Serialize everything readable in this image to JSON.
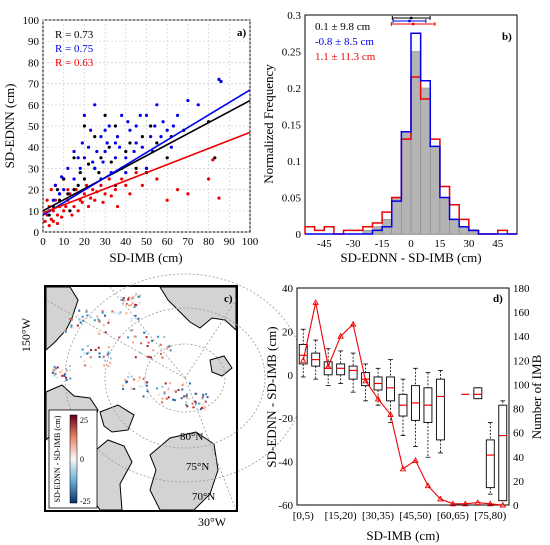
{
  "chart_data": [
    {
      "panel": "a)",
      "type": "scatter",
      "xlabel": "SD-IMB (cm)",
      "ylabel": "SD-EDNN (cm)",
      "xlim": [
        0,
        100
      ],
      "ylim": [
        0,
        100
      ],
      "xticks": [
        "0",
        "10",
        "20",
        "30",
        "40",
        "50",
        "60",
        "70",
        "80",
        "90",
        "100"
      ],
      "yticks": [
        "0",
        "10",
        "20",
        "30",
        "40",
        "50",
        "60",
        "70",
        "80",
        "90",
        "100"
      ],
      "grid": true,
      "series": [
        {
          "label": "R = 0.73",
          "color": "#000000",
          "fit": [
            10,
            0.52
          ],
          "points": [
            [
              5,
              12
            ],
            [
              8,
              15
            ],
            [
              12,
              18
            ],
            [
              15,
              20
            ],
            [
              20,
              25
            ],
            [
              25,
              30
            ],
            [
              28,
              35
            ],
            [
              32,
              40
            ],
            [
              35,
              22
            ],
            [
              40,
              38
            ],
            [
              45,
              30
            ],
            [
              48,
              45
            ],
            [
              50,
              28
            ],
            [
              55,
              42
            ],
            [
              60,
              35
            ],
            [
              20,
              50
            ],
            [
              25,
              45
            ],
            [
              30,
              55
            ],
            [
              15,
              35
            ],
            [
              10,
              25
            ],
            [
              18,
              28
            ],
            [
              22,
              32
            ],
            [
              35,
              50
            ],
            [
              42,
              42
            ],
            [
              52,
              50
            ],
            [
              62,
              45
            ],
            [
              68,
              48
            ],
            [
              80,
              52
            ],
            [
              83,
              35
            ],
            [
              3,
              8
            ],
            [
              7,
              20
            ],
            [
              13,
              10
            ],
            [
              17,
              22
            ],
            [
              27,
              28
            ],
            [
              33,
              33
            ],
            [
              38,
              30
            ]
          ]
        },
        {
          "label": "R = 0.75",
          "color": "#0000ee",
          "fit": [
            8,
            0.59
          ],
          "points": [
            [
              5,
              15
            ],
            [
              8,
              18
            ],
            [
              10,
              20
            ],
            [
              15,
              25
            ],
            [
              18,
              30
            ],
            [
              20,
              35
            ],
            [
              22,
              40
            ],
            [
              25,
              30
            ],
            [
              28,
              45
            ],
            [
              30,
              38
            ],
            [
              32,
              50
            ],
            [
              35,
              42
            ],
            [
              38,
              55
            ],
            [
              40,
              35
            ],
            [
              42,
              48
            ],
            [
              45,
              50
            ],
            [
              48,
              40
            ],
            [
              50,
              55
            ],
            [
              52,
              45
            ],
            [
              55,
              60
            ],
            [
              58,
              52
            ],
            [
              60,
              48
            ],
            [
              62,
              40
            ],
            [
              65,
              55
            ],
            [
              70,
              62
            ],
            [
              75,
              60
            ],
            [
              85,
              72
            ],
            [
              86,
              71
            ],
            [
              20,
              55
            ],
            [
              25,
              60
            ],
            [
              30,
              48
            ],
            [
              35,
              35
            ],
            [
              40,
              28
            ],
            [
              15,
              38
            ],
            [
              12,
              30
            ],
            [
              28,
              25
            ],
            [
              33,
              28
            ],
            [
              45,
              42
            ],
            [
              50,
              30
            ],
            [
              24,
              33
            ],
            [
              26,
              38
            ],
            [
              36,
              45
            ],
            [
              44,
              38
            ],
            [
              54,
              50
            ],
            [
              3,
              10
            ],
            [
              6,
              22
            ],
            [
              9,
              26
            ],
            [
              17,
              35
            ],
            [
              19,
              42
            ],
            [
              23,
              48
            ],
            [
              29,
              33
            ],
            [
              31,
              42
            ],
            [
              37,
              40
            ],
            [
              41,
              52
            ],
            [
              47,
              55
            ],
            [
              53,
              38
            ],
            [
              57,
              45
            ],
            [
              63,
              50
            ]
          ]
        },
        {
          "label": "R = 0.63",
          "color": "#ee0000",
          "fit": [
            9,
            0.38
          ],
          "points": [
            [
              1,
              5
            ],
            [
              2,
              8
            ],
            [
              3,
              12
            ],
            [
              4,
              6
            ],
            [
              5,
              10
            ],
            [
              6,
              15
            ],
            [
              7,
              8
            ],
            [
              8,
              12
            ],
            [
              10,
              10
            ],
            [
              12,
              15
            ],
            [
              14,
              8
            ],
            [
              15,
              12
            ],
            [
              16,
              20
            ],
            [
              18,
              15
            ],
            [
              20,
              18
            ],
            [
              22,
              12
            ],
            [
              24,
              20
            ],
            [
              25,
              15
            ],
            [
              28,
              22
            ],
            [
              30,
              18
            ],
            [
              32,
              25
            ],
            [
              35,
              20
            ],
            [
              38,
              25
            ],
            [
              40,
              22
            ],
            [
              45,
              28
            ],
            [
              50,
              30
            ],
            [
              55,
              25
            ],
            [
              60,
              15
            ],
            [
              65,
              20
            ],
            [
              70,
              18
            ],
            [
              80,
              25
            ],
            [
              82,
              34
            ],
            [
              85,
              16
            ],
            [
              2,
              15
            ],
            [
              4,
              20
            ],
            [
              6,
              22
            ],
            [
              8,
              18
            ],
            [
              10,
              25
            ],
            [
              12,
              20
            ],
            [
              3,
              3
            ],
            [
              5,
              5
            ],
            [
              7,
              4
            ],
            [
              9,
              7
            ],
            [
              11,
              12
            ],
            [
              13,
              18
            ],
            [
              17,
              10
            ],
            [
              19,
              14
            ],
            [
              21,
              22
            ],
            [
              23,
              16
            ],
            [
              26,
              19
            ],
            [
              29,
              14
            ],
            [
              33,
              17
            ],
            [
              36,
              12
            ],
            [
              42,
              18
            ],
            [
              48,
              22
            ]
          ]
        }
      ]
    },
    {
      "panel": "b)",
      "type": "histogram",
      "xlabel": "SD-EDNN - SD-IMB (cm)",
      "ylabel": "Normalized Frequency",
      "xlim": [
        -55,
        55
      ],
      "ylim": [
        0,
        0.3
      ],
      "xticks": [
        "-45",
        "-30",
        "-15",
        "0",
        "15",
        "30",
        "45"
      ],
      "yticks": [
        "0",
        "0.05",
        "0.1",
        "0.15",
        "0.2",
        "0.25",
        "0.3"
      ],
      "bin_edges": [
        -55,
        -50,
        -45,
        -40,
        -35,
        -30,
        -25,
        -20,
        -15,
        -10,
        -5,
        0,
        5,
        10,
        15,
        20,
        25,
        30,
        35,
        40,
        45,
        50,
        55
      ],
      "series": [
        {
          "label": "0.1 ± 9.8 cm",
          "color": "#b4b4b4",
          "style": "filled",
          "values": [
            0,
            0,
            0,
            0,
            0,
            0,
            0.005,
            0.01,
            0.02,
            0.05,
            0.14,
            0.25,
            0.2,
            0.12,
            0.05,
            0.02,
            0.01,
            0.005,
            0,
            0,
            0,
            0
          ],
          "mean": 0.1,
          "sd": 9.8
        },
        {
          "label": "-0.8 ± 8.5 cm",
          "color": "#0000ee",
          "style": "step",
          "values": [
            0,
            0,
            0,
            0,
            0,
            0,
            0,
            0.005,
            0.01,
            0.045,
            0.14,
            0.275,
            0.21,
            0.12,
            0.05,
            0.02,
            0.01,
            0.005,
            0,
            0,
            0,
            0
          ],
          "mean": -0.8,
          "sd": 8.5
        },
        {
          "label": "1.1 ± 11.3 cm",
          "color": "#ee0000",
          "style": "step",
          "values": [
            0.01,
            0.005,
            0.01,
            0,
            0.005,
            0.005,
            0.01,
            0.015,
            0.03,
            0.05,
            0.13,
            0.215,
            0.185,
            0.13,
            0.065,
            0.04,
            0.02,
            0.005,
            0,
            0,
            0.005,
            0
          ],
          "mean": 1.1,
          "sd": 11.3
        }
      ]
    },
    {
      "panel": "c)",
      "type": "map",
      "colorbar_label": "SD-EDNN - SD-IMB (cm)",
      "colorbar_ticks": [
        "25",
        "0",
        "-25"
      ],
      "lat_labels": [
        "80°N",
        "75°N",
        "70°N"
      ],
      "lon_labels": [
        "150°W",
        "30°W"
      ]
    },
    {
      "panel": "d)",
      "type": "box",
      "xlabel": "SD-IMB (cm)",
      "ylabel_left": "SD-EDNN - SD-IMB (cm)",
      "ylabel_right": "Number of IMB",
      "ylim_left": [
        -60,
        40
      ],
      "ylim_right": [
        0,
        180
      ],
      "yticks_left": [
        "-60",
        "-40",
        "-20",
        "0",
        "20",
        "40"
      ],
      "yticks_right": [
        "0",
        "20",
        "40",
        "60",
        "80",
        "100",
        "120",
        "140",
        "160",
        "180"
      ],
      "xticklabels": [
        "[0,5)",
        "[15,20)",
        "[30,35)",
        "[45,50)",
        "[60,65)",
        "[75,80)"
      ],
      "bins": [
        "[0,5)",
        "[5,10)",
        "[10,15)",
        "[15,20)",
        "[20,25)",
        "[25,30)",
        "[30,35)",
        "[35,40)",
        "[40,45)",
        "[45,50)",
        "[50,55)",
        "[55,60)",
        "[60,65)",
        "[65,70)",
        "[70,75)",
        "[75,80)",
        "[80,85)"
      ],
      "boxes": [
        {
          "q1": 5,
          "median": 9,
          "q3": 14,
          "wlo": -1,
          "whi": 21
        },
        {
          "q1": 4,
          "median": 7,
          "q3": 10,
          "wlo": -2,
          "whi": 16
        },
        {
          "q1": 0,
          "median": 3,
          "q3": 6,
          "wlo": -5,
          "whi": 12
        },
        {
          "q1": 0,
          "median": 3,
          "q3": 5,
          "wlo": -4,
          "whi": 11
        },
        {
          "q1": -2,
          "median": 2,
          "q3": 4,
          "wlo": -8,
          "whi": 10
        },
        {
          "q1": -5,
          "median": -2,
          "q3": 1,
          "wlo": -12,
          "whi": 5
        },
        {
          "q1": -7,
          "median": -4,
          "q3": -1,
          "wlo": -14,
          "whi": 3
        },
        {
          "q1": -12,
          "median": -6,
          "q3": -1,
          "wlo": -22,
          "whi": 7
        },
        {
          "q1": -19,
          "median": -14,
          "q3": -9,
          "wlo": -28,
          "whi": -2
        },
        {
          "q1": -21,
          "median": -13,
          "q3": -5,
          "wlo": -33,
          "whi": 3
        },
        {
          "q1": -22,
          "median": -14,
          "q3": -6,
          "wlo": -38,
          "whi": 1
        },
        {
          "q1": -30,
          "median": -10,
          "q3": -2,
          "wlo": -36,
          "whi": 2
        },
        null,
        {
          "q1": -9,
          "median": -9,
          "q3": -9,
          "wlo": -9,
          "whi": -9,
          "only_median": true
        },
        {
          "q1": -11,
          "median": -9,
          "q3": -6,
          "wlo": -11,
          "whi": -6
        },
        {
          "q1": -52,
          "median": -37,
          "q3": -30,
          "wlo": -55,
          "whi": -22
        },
        {
          "q1": -58,
          "median": -28,
          "q3": -14,
          "wlo": -58,
          "whi": -12
        }
      ],
      "count_line": {
        "color": "#ee0000",
        "values": [
          120,
          168,
          115,
          140,
          150,
          103,
          88,
          75,
          30,
          37,
          16,
          5,
          1,
          1,
          2,
          1,
          0
        ]
      }
    }
  ]
}
